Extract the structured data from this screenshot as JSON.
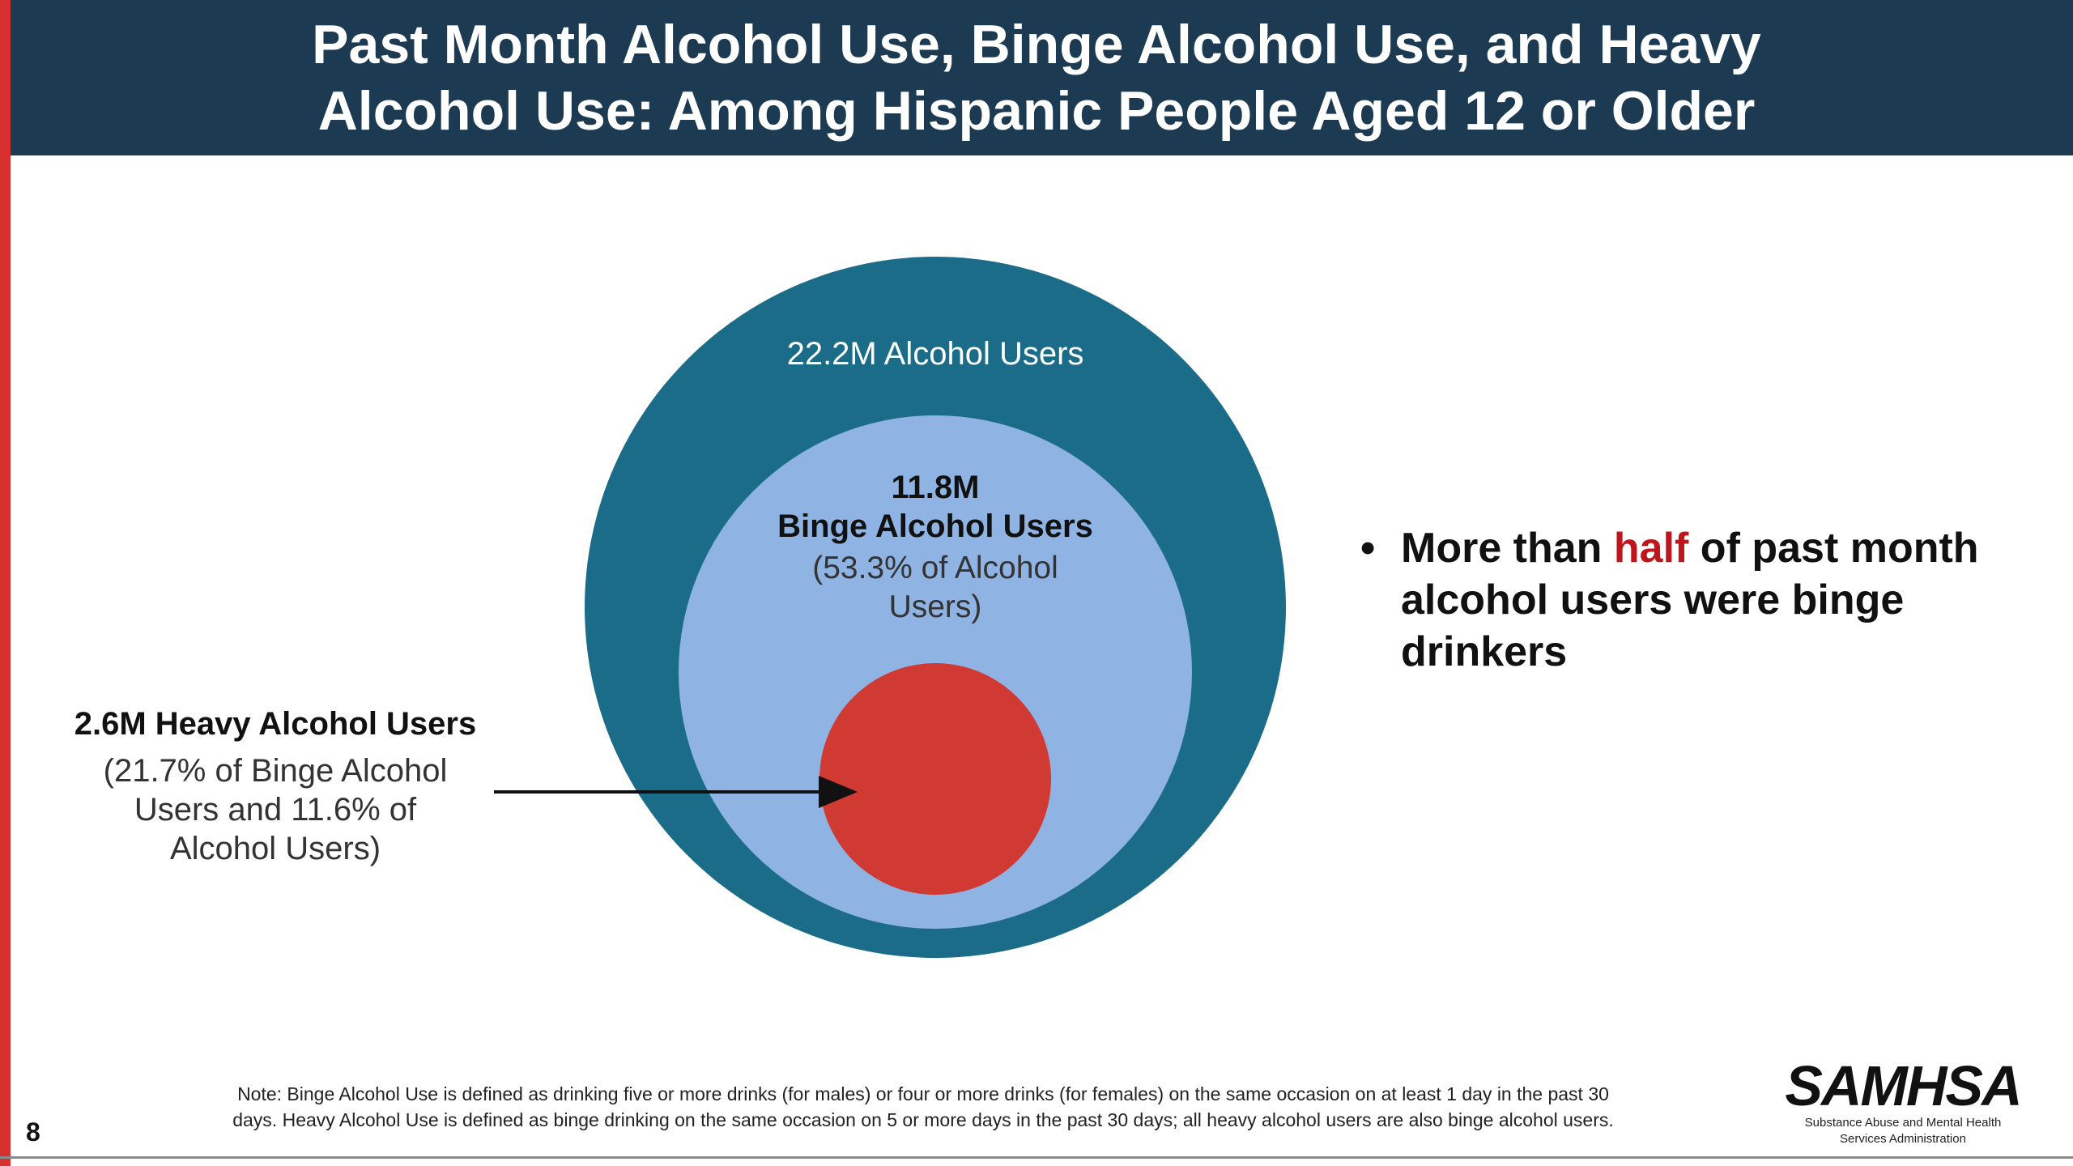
{
  "header": {
    "title_line1": "Past Month Alcohol Use, Binge Alcohol Use, and Heavy",
    "title_line2": "Alcohol Use: Among Hispanic People Aged 12 or Older"
  },
  "diagram": {
    "outer": {
      "label": "22.2M Alcohol Users",
      "value_millions": 22.2,
      "color": "#1b6c88"
    },
    "middle": {
      "value_label": "11.8M",
      "name": "Binge Alcohol Users",
      "share_line1": "(53.3% of Alcohol",
      "share_line2": "Users)",
      "value_millions": 11.8,
      "share_percent": 53.3,
      "color": "#8fb3e3"
    },
    "inner": {
      "title": "2.6M Heavy Alcohol Users",
      "line1": "(21.7% of Binge Alcohol",
      "line2": "Users and 11.6% of",
      "line3": "Alcohol Users)",
      "value_millions": 2.6,
      "share_of_binge_percent": 21.7,
      "share_of_alcohol_percent": 11.6,
      "color": "#d03a33"
    }
  },
  "bullet": {
    "dot": "•",
    "text_before": "More than ",
    "highlight": "half",
    "text_after": " of past month alcohol users were binge drinkers",
    "highlight_color": "#c0151c"
  },
  "footer": {
    "note_line1": "Note: Binge Alcohol Use is defined as drinking five or more drinks (for males) or four or more drinks (for females) on the same occasion on at least 1 day in the past 30",
    "note_line2": "days. Heavy Alcohol Use is defined as binge drinking on the same occasion on 5 or more days in the past 30 days; all heavy alcohol users are also binge alcohol users.",
    "slide_number": "8",
    "logo_text": "SAMHSA",
    "logo_subtitle_line1": "Substance Abuse and Mental Health",
    "logo_subtitle_line2": "Services Administration"
  },
  "colors": {
    "header_bg": "#1c3a52",
    "accent_stripe": "#d63031"
  }
}
